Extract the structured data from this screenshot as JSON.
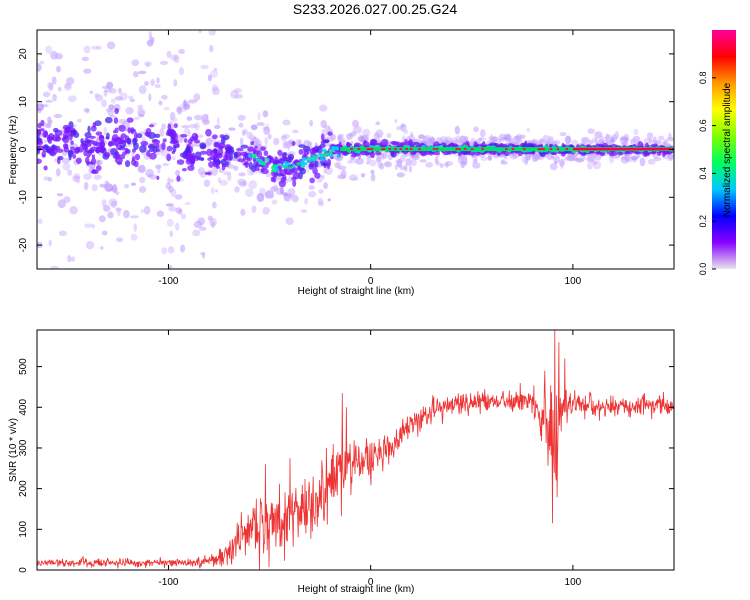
{
  "figure_title": "S233.2026.027.00.25.G24",
  "colors": {
    "snr_line": "#ee3333",
    "track_core": "#ff0040",
    "colorbar_stops": [
      "#e8e4ec",
      "#8800ff",
      "#0000ff",
      "#00c8ff",
      "#00ff60",
      "#7fff00",
      "#ffff00",
      "#ff9900",
      "#ff0000",
      "#ff00a0"
    ]
  },
  "chart_data": [
    {
      "type": "heatmap",
      "name": "spectrogram",
      "xlabel": "Height of straight line (km)",
      "ylabel": "Frequency (Hz)",
      "xlim": [
        -165,
        150
      ],
      "ylim": [
        -25,
        25
      ],
      "xticks": [
        -100,
        0,
        100
      ],
      "xtick_labels": [
        "-100",
        "0",
        "100"
      ],
      "yticks": [
        -20,
        -10,
        0,
        10,
        20
      ],
      "ytick_labels": [
        "-20",
        "-10",
        "0",
        "10",
        "20"
      ],
      "colorbar": {
        "label": "Normalized spectral amplitude",
        "range": [
          0,
          1
        ],
        "ticks": [
          0.0,
          0.2,
          0.4,
          0.6,
          0.8
        ],
        "tick_labels": [
          "0.0",
          "0.2",
          "0.4",
          "0.6",
          "0.8"
        ]
      },
      "track_center_hz": [
        {
          "x": -165,
          "f": 1.0
        },
        {
          "x": -120,
          "f": 1.5
        },
        {
          "x": -80,
          "f": -1.0
        },
        {
          "x": -60,
          "f": -1.0
        },
        {
          "x": -48,
          "f": -4.0
        },
        {
          "x": -35,
          "f": -3.0
        },
        {
          "x": -25,
          "f": -1.0
        },
        {
          "x": -15,
          "f": 0.0
        },
        {
          "x": 0,
          "f": 0.2
        },
        {
          "x": 25,
          "f": 0.3
        },
        {
          "x": 75,
          "f": 0.0
        },
        {
          "x": 150,
          "f": 0.0
        }
      ]
    },
    {
      "type": "line",
      "name": "snr",
      "xlabel": "Height of straight line (km)",
      "ylabel": "SNR (10 * v/v)",
      "xlim": [
        -165,
        150
      ],
      "ylim": [
        0,
        590
      ],
      "xticks": [
        -100,
        0,
        100
      ],
      "xtick_labels": [
        "-100",
        "0",
        "100"
      ],
      "yticks": [
        0,
        100,
        200,
        300,
        400,
        500
      ],
      "ytick_labels": [
        "0",
        "100",
        "200",
        "300",
        "400",
        "500"
      ],
      "trend": {
        "x": [
          -165,
          -90,
          -80,
          -72,
          -60,
          -45,
          -30,
          -20,
          -10,
          0,
          10,
          20,
          30,
          40,
          60,
          80,
          90,
          95,
          100,
          120,
          150
        ],
        "y": [
          18,
          18,
          20,
          40,
          100,
          115,
          145,
          220,
          245,
          270,
          310,
          355,
          390,
          405,
          415,
          420,
          330,
          400,
          410,
          400,
          405
        ]
      },
      "noise_amplitude": {
        "x": [
          -165,
          -90,
          -75,
          -60,
          -40,
          -20,
          0,
          20,
          40,
          80,
          85,
          90,
          95,
          100,
          150
        ],
        "y": [
          9,
          9,
          18,
          70,
          70,
          70,
          45,
          25,
          25,
          25,
          60,
          150,
          60,
          25,
          20
        ]
      },
      "spikes": [
        {
          "x": -52,
          "y": 260
        },
        {
          "x": -40,
          "y": 275
        },
        {
          "x": -22,
          "y": 300
        },
        {
          "x": -14,
          "y": 435
        },
        {
          "x": -12,
          "y": 400
        },
        {
          "x": 90,
          "y": 115
        },
        {
          "x": 91,
          "y": 590
        },
        {
          "x": 93,
          "y": 560
        },
        {
          "x": 96,
          "y": 520
        }
      ]
    }
  ]
}
